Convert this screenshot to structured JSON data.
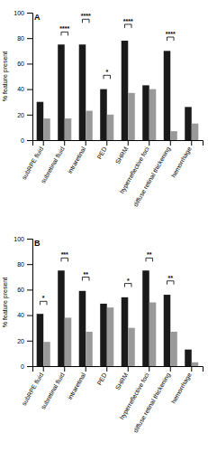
{
  "chart_data": [
    {
      "type": "bar",
      "title": "A",
      "ylabel": "% feature present",
      "categories": [
        "subRPE fluid",
        "subretinal fluid",
        "intraretinal",
        "PED",
        "SHRM",
        "hyperreflective foci",
        "diffuse retinal thickening",
        "hemorrhage"
      ],
      "series": [
        {
          "color": "#1a1a1a",
          "values": [
            30,
            75,
            75,
            40,
            78,
            43,
            70,
            26
          ]
        },
        {
          "color": "#999999",
          "values": [
            17,
            17,
            23,
            20,
            37,
            40,
            7,
            13
          ]
        }
      ],
      "ylim": [
        0,
        100
      ],
      "yticks": [
        0,
        20,
        40,
        60,
        80,
        100
      ],
      "annotations": [
        {
          "text": "****",
          "x": "subretinal fluid",
          "y": 82
        },
        {
          "text": "****",
          "x": "intraretinal",
          "y": 92
        },
        {
          "text": "*",
          "x": "PED",
          "y": 48
        },
        {
          "text": "****",
          "x": "SHRM",
          "y": 88
        },
        {
          "text": "****",
          "x": "diffuse retinal thickening",
          "y": 78
        }
      ]
    },
    {
      "type": "bar",
      "title": "B",
      "ylabel": "% feature present",
      "categories": [
        "subRPE fluid",
        "subretinal fluid",
        "intraretinal",
        "PED",
        "SHRM",
        "hyperreflective foci",
        "diffuse retinal thickening",
        "hemorrhage"
      ],
      "series": [
        {
          "color": "#1a1a1a",
          "values": [
            41,
            75,
            59,
            49,
            54,
            75,
            56,
            13
          ]
        },
        {
          "color": "#999999",
          "values": [
            19,
            38,
            27,
            46,
            30,
            50,
            27,
            3
          ]
        }
      ],
      "ylim": [
        0,
        100
      ],
      "yticks": [
        0,
        20,
        40,
        60,
        80,
        100
      ],
      "annotations": [
        {
          "text": "*",
          "x": "subRPE fluid",
          "y": 48
        },
        {
          "text": "***",
          "x": "subretinal fluid",
          "y": 82
        },
        {
          "text": "**",
          "x": "intraretinal",
          "y": 67
        },
        {
          "text": "*",
          "x": "SHRM",
          "y": 62
        },
        {
          "text": "**",
          "x": "hyperreflective foci",
          "y": 82
        },
        {
          "text": "**",
          "x": "diffuse retinal thickening",
          "y": 64
        }
      ]
    }
  ]
}
